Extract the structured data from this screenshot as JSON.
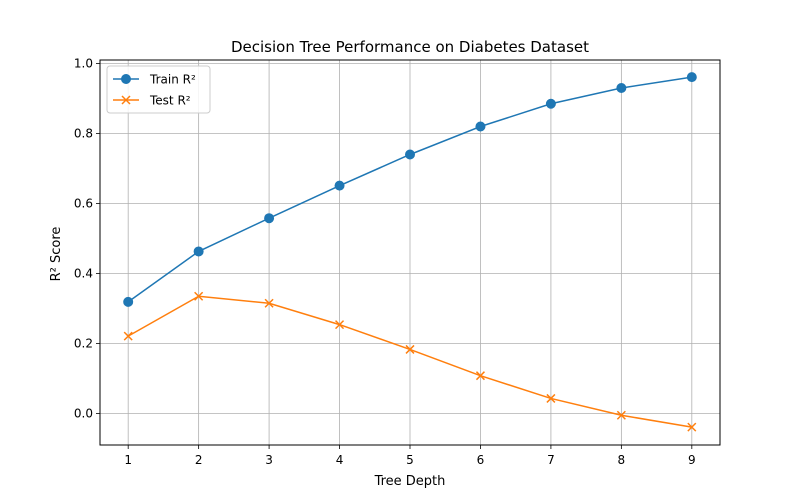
{
  "chart_data": {
    "type": "line",
    "title": "Decision Tree Performance on Diabetes Dataset",
    "xlabel": "Tree Depth",
    "ylabel": "R² Score",
    "x": [
      1,
      2,
      3,
      4,
      5,
      6,
      7,
      8,
      9
    ],
    "xlim": [
      0.6,
      9.4
    ],
    "ylim": [
      -0.09,
      1.01
    ],
    "xticks": [
      1,
      2,
      3,
      4,
      5,
      6,
      7,
      8,
      9
    ],
    "yticks": [
      0.0,
      0.2,
      0.4,
      0.6,
      0.8,
      1.0
    ],
    "ytick_labels": [
      "0.0",
      "0.2",
      "0.4",
      "0.6",
      "0.8",
      "1.0"
    ],
    "grid": true,
    "legend": "upper-left",
    "series": [
      {
        "name": "Train R²",
        "color": "#1f77b4",
        "marker": "circle",
        "values": [
          0.319,
          0.463,
          0.558,
          0.651,
          0.74,
          0.82,
          0.885,
          0.93,
          0.961
        ]
      },
      {
        "name": "Test R²",
        "color": "#ff7f0e",
        "marker": "x",
        "values": [
          0.221,
          0.335,
          0.315,
          0.254,
          0.183,
          0.108,
          0.043,
          -0.005,
          -0.039
        ]
      }
    ]
  }
}
